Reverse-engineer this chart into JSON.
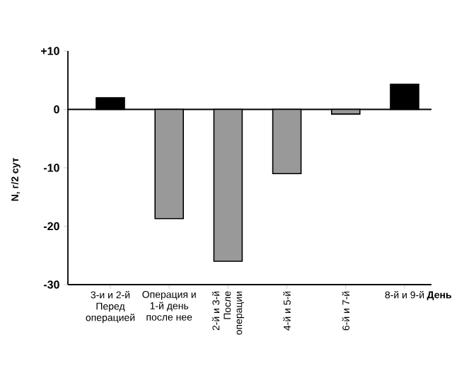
{
  "chart_data": {
    "type": "bar",
    "categories": [
      "3-и и 2-й Перед операцией",
      "Операция и 1-й день после нее",
      "2-й и 3-й После операции",
      "4-й и 5-й",
      "6-й и 7-й",
      "8-й и 9-й"
    ],
    "values": [
      2,
      -18.7,
      -26,
      -11,
      -0.8,
      4.3
    ],
    "colors": [
      "#000000",
      "#999999",
      "#999999",
      "#999999",
      "#999999",
      "#000000"
    ],
    "xlabel": "День",
    "ylabel": "N, г/2 сут",
    "ylim": [
      -30,
      10
    ],
    "yticks": [
      -30,
      -20,
      -10,
      0,
      {
        "value": 10,
        "label": "+10"
      }
    ],
    "ref_lines": [
      {
        "axis": "y",
        "value": 0,
        "color": "#000000"
      }
    ]
  }
}
